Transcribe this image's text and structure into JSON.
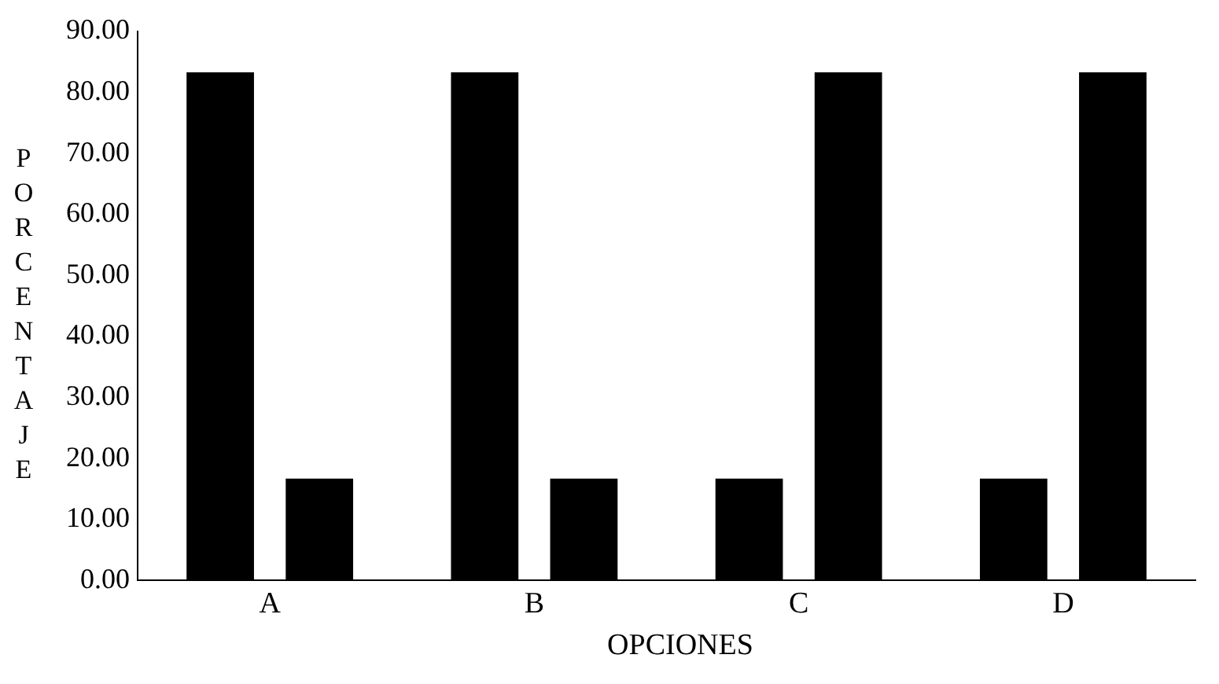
{
  "chart_data": {
    "type": "bar",
    "xlabel": "OPCIONES",
    "ylabel": "PORCENTAJE",
    "categories": [
      "A",
      "B",
      "C",
      "D"
    ],
    "series": [
      {
        "color": "#000000",
        "values": [
          83.3,
          83.3,
          16.7,
          16.7
        ]
      },
      {
        "color": "#000000",
        "values": [
          16.7,
          16.7,
          83.3,
          83.3
        ]
      }
    ],
    "ylim": [
      0,
      90
    ],
    "yticks": [
      {
        "value": 0,
        "label": "0.00"
      },
      {
        "value": 10,
        "label": "10.00"
      },
      {
        "value": 20,
        "label": "20.00"
      },
      {
        "value": 30,
        "label": "30.00"
      },
      {
        "value": 40,
        "label": "40.00"
      },
      {
        "value": 50,
        "label": "50.00"
      },
      {
        "value": 60,
        "label": "60.00"
      },
      {
        "value": 70,
        "label": "70.00"
      },
      {
        "value": 80,
        "label": "80.00"
      },
      {
        "value": 90,
        "label": "90.00"
      }
    ],
    "grid": false,
    "legend": false
  }
}
